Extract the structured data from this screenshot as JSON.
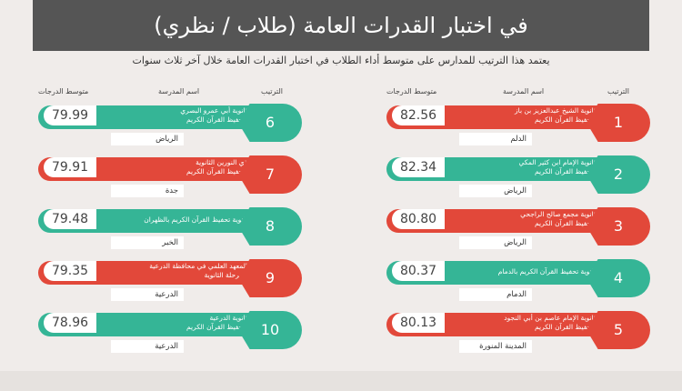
{
  "header": {
    "title": "في اختبار القدرات العامة (طلاب / نظري)",
    "subtitle": "يعتمد هذا الترتيب للمدارس على متوسط أداء الطلاب في اختبار القدرات العامة خلال آخر ثلاث سنوات"
  },
  "columns": {
    "avg": "متوسط الدرجات",
    "school": "اسم المدرسة",
    "rank": "الترتيب"
  },
  "colors": {
    "green": "#35b596",
    "red": "#e2483a"
  },
  "right_column": [
    {
      "rank": "1",
      "score": "82.56",
      "school_l1": "ثانوية الشيخ عبدالعزيز بن باز",
      "school_l2": "لتحفيظ القرآن الكريم",
      "city": "الدلم",
      "color": "red"
    },
    {
      "rank": "2",
      "score": "82.34",
      "school_l1": "ثانوية الإمام ابن كثير المكي",
      "school_l2": "لتحفيظ القرآن الكريم",
      "city": "الرياض",
      "color": "green"
    },
    {
      "rank": "3",
      "score": "80.80",
      "school_l1": "ثانوية مجمع صالح الراجحي",
      "school_l2": "لتحفيظ القرآن الكريم",
      "city": "الرياض",
      "color": "red"
    },
    {
      "rank": "4",
      "score": "80.37",
      "school_l1": "ثانوية تحفيظ القرآن الكريم بالدمام",
      "school_l2": "",
      "city": "الدمام",
      "color": "green"
    },
    {
      "rank": "5",
      "score": "80.13",
      "school_l1": "ثانوية الإمام عاصم بن أبي النجود",
      "school_l2": "لتحفيظ القرآن الكريم",
      "city": "المدينة المنورة",
      "color": "red"
    }
  ],
  "left_column": [
    {
      "rank": "6",
      "score": "79.99",
      "school_l1": "ثانوية أبي عمرو البصري",
      "school_l2": "لتحفيظ القرآن الكريم",
      "city": "الرياض",
      "color": "green"
    },
    {
      "rank": "7",
      "score": "79.91",
      "school_l1": "ذي النورين الثانوية",
      "school_l2": "لتحفيظ القرآن الكريم",
      "city": "جدة",
      "color": "red"
    },
    {
      "rank": "8",
      "score": "79.48",
      "school_l1": "ثانوية تحفيظ القرآن الكريم بالظهران",
      "school_l2": "",
      "city": "الخبر",
      "color": "green"
    },
    {
      "rank": "9",
      "score": "79.35",
      "school_l1": "المعهد العلمي في محافظة الدرعية",
      "school_l2": "المرحلة الثانوية",
      "city": "الدرعية",
      "color": "red"
    },
    {
      "rank": "10",
      "score": "78.96",
      "school_l1": "ثانوية الدرعية",
      "school_l2": "لتحفيظ القرآن الكريم",
      "city": "الدرعية",
      "color": "green"
    }
  ]
}
